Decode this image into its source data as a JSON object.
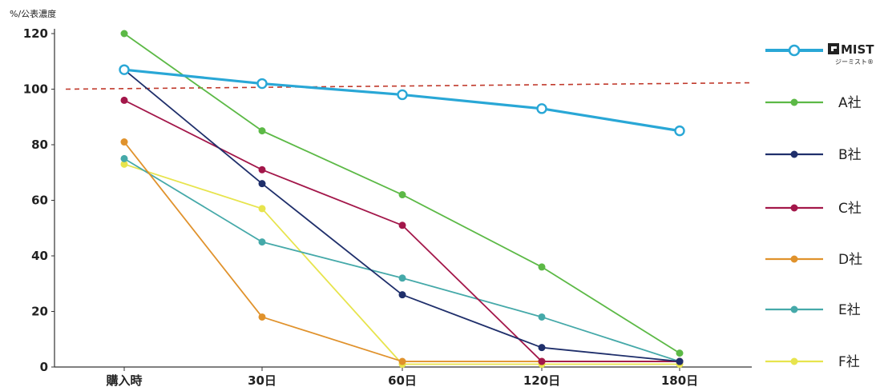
{
  "chart_data": {
    "type": "line",
    "title": "",
    "ylabel": "%/公表濃度",
    "xlabel": "",
    "categories": [
      "購入時",
      "30日",
      "60日",
      "120日",
      "180日"
    ],
    "x": [
      0,
      30,
      60,
      120,
      180
    ],
    "ylim": [
      0,
      120
    ],
    "yticks": [
      0,
      20,
      40,
      60,
      80,
      100,
      120
    ],
    "reference_line": {
      "y": 100,
      "style": "dashed",
      "color": "#c0392b"
    },
    "legend_position": "right",
    "brand": {
      "logo_text": "MIST",
      "logo_icon": "g-logo-icon",
      "sub_text": "ジーミスト®"
    },
    "series": [
      {
        "name": "ジーミスト®",
        "values": [
          107,
          102,
          98,
          93,
          85
        ],
        "color": "#29a7d6",
        "marker": "open-circle"
      },
      {
        "name": "A社",
        "values": [
          120,
          85,
          62,
          36,
          5
        ],
        "color": "#5cb946",
        "marker": "dot"
      },
      {
        "name": "B社",
        "values": [
          107,
          66,
          26,
          7,
          2
        ],
        "color": "#1f2f6b",
        "marker": "dot"
      },
      {
        "name": "C社",
        "values": [
          96,
          71,
          51,
          2,
          2
        ],
        "color": "#a3174a",
        "marker": "dot"
      },
      {
        "name": "D社",
        "values": [
          81,
          18,
          2,
          2,
          2
        ],
        "color": "#e0922c",
        "marker": "dot"
      },
      {
        "name": "E社",
        "values": [
          75,
          45,
          32,
          18,
          2
        ],
        "color": "#45a9a9",
        "marker": "dot"
      },
      {
        "name": "F社",
        "values": [
          73,
          57,
          1,
          1,
          1
        ],
        "color": "#e7e44d",
        "marker": "dot"
      }
    ]
  }
}
